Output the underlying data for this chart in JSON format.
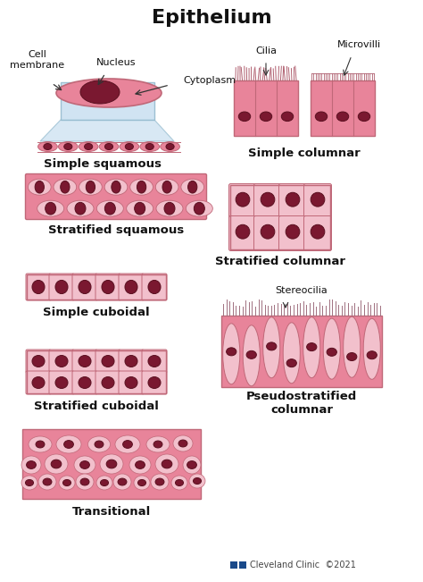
{
  "title": "Epithelium",
  "bg_color": "#ffffff",
  "cell_fill": "#e8849a",
  "cell_edge": "#c06878",
  "nucleus_fill": "#7a1830",
  "nucleus_edge": "#5a1020",
  "light_fill": "#eeaabb",
  "inner_fill": "#f2c0cc",
  "cilia_color": "#b06070",
  "title_fontsize": 16,
  "label_fontsize": 9.5,
  "annotation_fontsize": 8,
  "footer_text": "Cleveland Clinic  ©2021",
  "labels": {
    "simple_squamous": "Simple squamous",
    "stratified_squamous": "Stratified squamous",
    "simple_cuboidal": "Simple cuboidal",
    "stratified_cuboidal": "Stratified cuboidal",
    "transitional": "Transitional",
    "simple_columnar": "Simple columnar",
    "stratified_columnar": "Stratified columnar",
    "pseudostratified": "Pseudostratified\ncolumnar"
  },
  "annotations": {
    "cell_membrane": "Cell\nmembrane",
    "nucleus": "Nucleus",
    "cytoplasm": "Cytoplasm",
    "cilia": "Cilia",
    "microvilli": "Microvilli",
    "stereocilia": "Stereocilia"
  }
}
